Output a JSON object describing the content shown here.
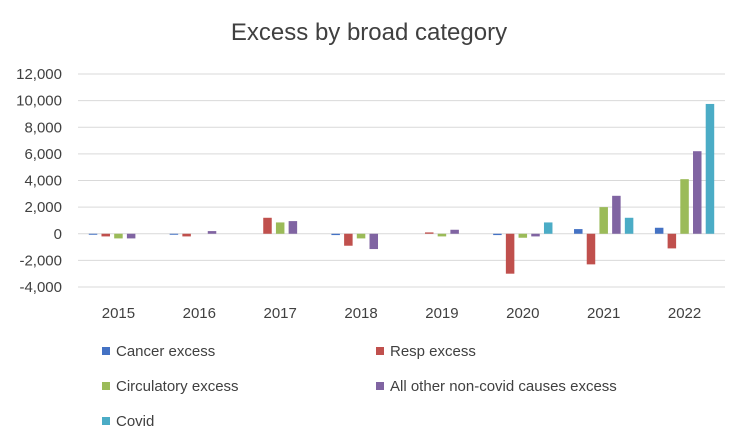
{
  "chart_data": {
    "type": "bar",
    "title": "Excess by broad category",
    "xlabel": "",
    "ylabel": "",
    "categories": [
      "2015",
      "2016",
      "2017",
      "2018",
      "2019",
      "2020",
      "2021",
      "2022"
    ],
    "ylim": [
      -4000,
      12000
    ],
    "yticks": [
      -4000,
      -2000,
      0,
      2000,
      4000,
      6000,
      8000,
      10000,
      12000
    ],
    "ytick_labels": [
      "-4,000",
      "-2,000",
      "0",
      "2,000",
      "4,000",
      "6,000",
      "8,000",
      "10,000",
      "12,000"
    ],
    "grid": true,
    "legend_position": "bottom",
    "series": [
      {
        "name": "Cancer excess",
        "color": "#4472C4",
        "values": [
          -50,
          -50,
          0,
          -100,
          0,
          -100,
          350,
          450
        ]
      },
      {
        "name": "Resp excess",
        "color": "#C0504D",
        "values": [
          -200,
          -200,
          1200,
          -900,
          100,
          -3000,
          -2300,
          -1100
        ]
      },
      {
        "name": "Circulatory excess",
        "color": "#9BBB59",
        "values": [
          -350,
          0,
          850,
          -350,
          -200,
          -300,
          2000,
          4100
        ]
      },
      {
        "name": "All other non-covid causes excess",
        "color": "#8064A2",
        "values": [
          -350,
          200,
          950,
          -1150,
          300,
          -200,
          2850,
          6200
        ]
      },
      {
        "name": "Covid",
        "color": "#4BACC6",
        "values": [
          0,
          0,
          0,
          0,
          0,
          850,
          1200,
          9750
        ]
      }
    ]
  }
}
